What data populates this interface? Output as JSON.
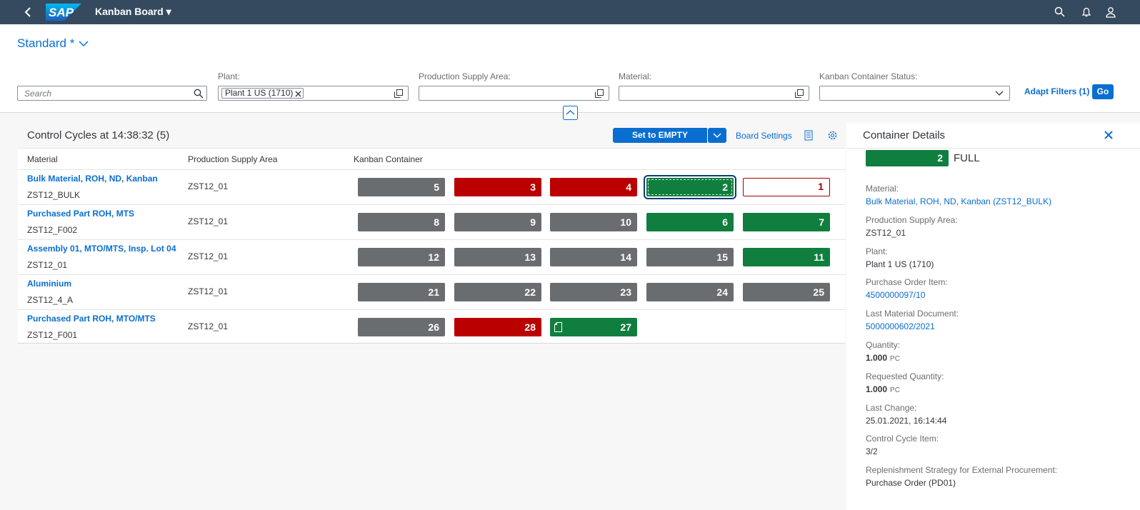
{
  "shell": {
    "title": "Kanban Board"
  },
  "variant": {
    "name": "Standard *"
  },
  "filters": {
    "search_placeholder": "Search",
    "fields": [
      {
        "label": "Plant:",
        "token": "Plant 1 US (1710)"
      },
      {
        "label": "Production Supply Area:"
      },
      {
        "label": "Material:"
      },
      {
        "label": "Kanban Container Status:"
      }
    ],
    "adapt": "Adapt Filters (1)",
    "go": "Go"
  },
  "table": {
    "title": "Control Cycles at 14:38:32 (5)",
    "set_empty": "Set to EMPTY",
    "board_settings": "Board Settings",
    "columns": [
      "Material",
      "Production Supply Area",
      "Kanban Container"
    ],
    "rows": [
      {
        "material": "Bulk Material, ROH, ND, Kanban",
        "id": "ZST12_BULK",
        "psa": "ZST12_01",
        "containers": [
          {
            "number": 5,
            "status": "gray"
          },
          {
            "number": 3,
            "status": "red"
          },
          {
            "number": 4,
            "status": "red"
          },
          {
            "number": 2,
            "status": "green",
            "selected": true
          },
          {
            "number": 1,
            "status": "red-outline"
          }
        ]
      },
      {
        "material": "Purchased Part ROH, MTS",
        "id": "ZST12_F002",
        "psa": "ZST12_01",
        "containers": [
          {
            "number": 8,
            "status": "gray"
          },
          {
            "number": 9,
            "status": "gray"
          },
          {
            "number": 10,
            "status": "gray"
          },
          {
            "number": 6,
            "status": "green"
          },
          {
            "number": 7,
            "status": "green"
          }
        ]
      },
      {
        "material": "Assembly 01, MTO/MTS, Insp. Lot 04",
        "id": "ZST12_01",
        "psa": "ZST12_01",
        "containers": [
          {
            "number": 12,
            "status": "gray"
          },
          {
            "number": 13,
            "status": "gray"
          },
          {
            "number": 14,
            "status": "gray"
          },
          {
            "number": 15,
            "status": "gray"
          },
          {
            "number": 11,
            "status": "green"
          }
        ]
      },
      {
        "material": "Aluminium",
        "id": "ZST12_4_A",
        "psa": "ZST12_01",
        "containers": [
          {
            "number": 21,
            "status": "gray"
          },
          {
            "number": 22,
            "status": "gray"
          },
          {
            "number": 23,
            "status": "gray"
          },
          {
            "number": 24,
            "status": "gray"
          },
          {
            "number": 25,
            "status": "gray"
          }
        ]
      },
      {
        "material": "Purchased Part ROH, MTO/MTS",
        "id": "ZST12_F001",
        "psa": "ZST12_01",
        "containers": [
          {
            "number": 26,
            "status": "gray"
          },
          {
            "number": 28,
            "status": "red"
          },
          {
            "number": 27,
            "status": "green",
            "icon": "document"
          }
        ]
      }
    ]
  },
  "details": {
    "title": "Container Details",
    "badge_number": 2,
    "badge_status": "FULL",
    "fields": [
      {
        "label": "Material:",
        "value": "Bulk Material, ROH, ND, Kanban (ZST12_BULK)",
        "link": true
      },
      {
        "label": "Production Supply Area:",
        "value": "ZST12_01"
      },
      {
        "label": "Plant:",
        "value": "Plant 1 US (1710)"
      },
      {
        "label": "Purchase Order Item:",
        "value": "4500000097/10",
        "link": true
      },
      {
        "label": "Last Material Document:",
        "value": "5000000602/2021",
        "link": true
      },
      {
        "label": "Quantity:",
        "value": "1.000",
        "unit": "PC"
      },
      {
        "label": "Requested Quantity:",
        "value": "1.000",
        "unit": "PC"
      },
      {
        "label": "Last Change:",
        "value": "25.01.2021, 16:14:44"
      },
      {
        "label": "Control Cycle Item:",
        "value": "3/2"
      },
      {
        "label": "Replenishment Strategy for External Procurement:",
        "value": "Purchase Order (PD01)"
      }
    ]
  }
}
